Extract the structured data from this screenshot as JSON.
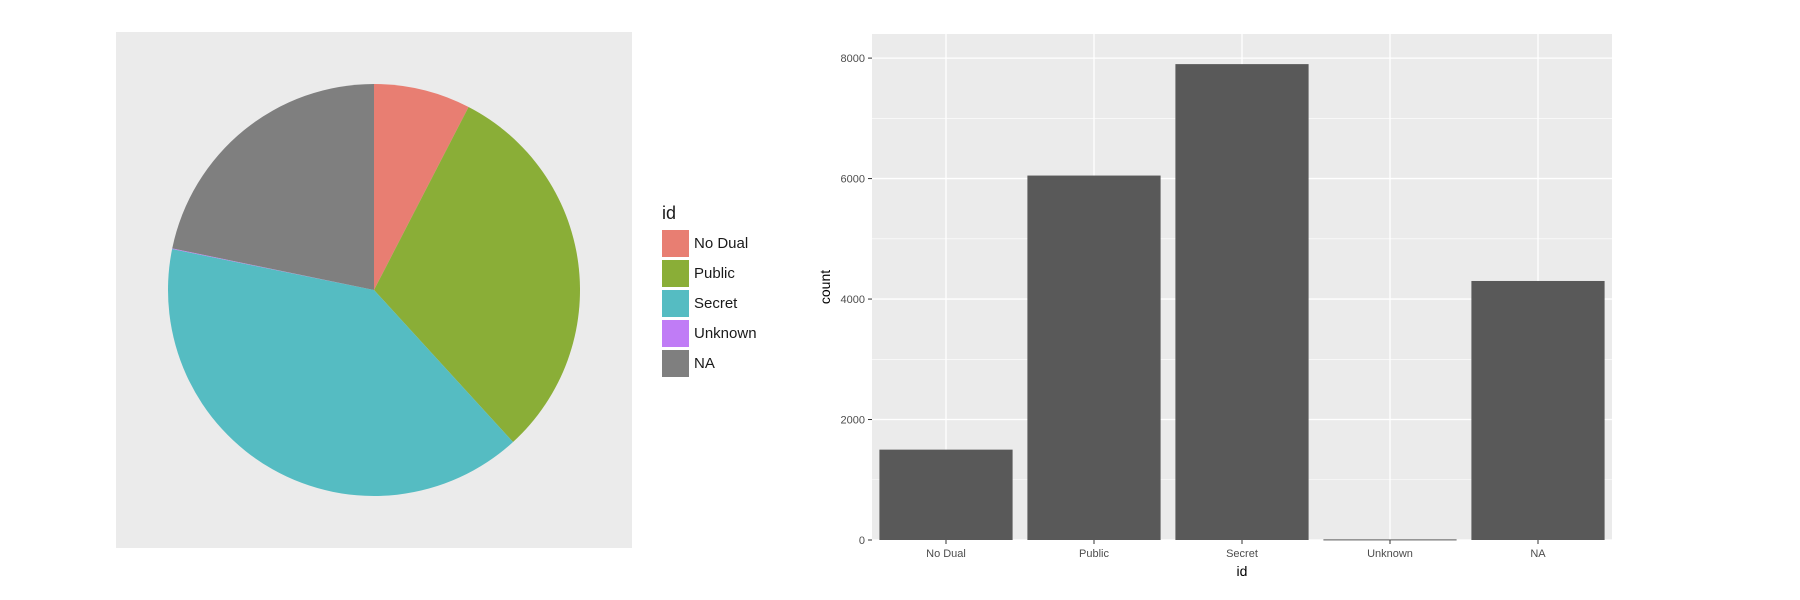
{
  "colors": {
    "panel_bg": "#ebebeb",
    "grid": "#ffffff",
    "bar": "#595959",
    "slices": [
      "#e87e72",
      "#8aae37",
      "#55bcc2",
      "#c07cf6",
      "#7f7f7f"
    ]
  },
  "chart_data": [
    {
      "type": "pie",
      "legend": {
        "title": "id",
        "placement": "right"
      },
      "categories": [
        "No Dual",
        "Public",
        "Secret",
        "Unknown",
        "NA"
      ],
      "values": [
        1500,
        6050,
        7900,
        10,
        4300
      ],
      "start": "top, clockwise"
    },
    {
      "type": "bar",
      "xlabel": "id",
      "ylabel": "count",
      "categories": [
        "No Dual",
        "Public",
        "Secret",
        "Unknown",
        "NA"
      ],
      "values": [
        1500,
        6050,
        7900,
        10,
        4300
      ],
      "ylim": [
        0,
        8400
      ],
      "yticks": [
        0,
        2000,
        4000,
        6000,
        8000
      ],
      "grid": true
    }
  ]
}
